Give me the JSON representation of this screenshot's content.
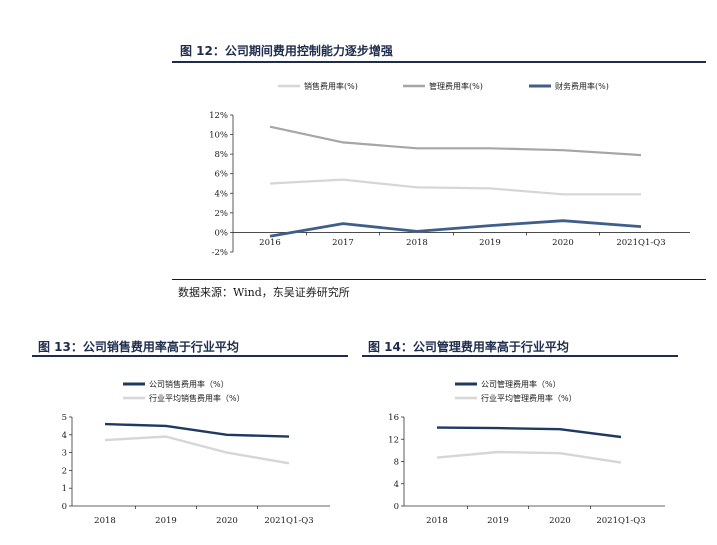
{
  "figures": [
    {
      "title": "图 12：公司期间费用控制能力逐步增强",
      "source": "数据来源：Wind，东吴证券研究所"
    },
    {
      "title": "图 13：公司销售费用率高于行业平均"
    },
    {
      "title": "图 14：公司管理费用率高于行业平均"
    }
  ],
  "chart_data": [
    {
      "type": "line",
      "categories": [
        "2016",
        "2017",
        "2018",
        "2019",
        "2020",
        "2021Q1-Q3"
      ],
      "y_ticks": [
        "12%",
        "10%",
        "8%",
        "6%",
        "4%",
        "2%",
        "0%",
        "-2%"
      ],
      "ylim": [
        -2,
        12
      ],
      "series": [
        {
          "name": "销售费用率(%)",
          "values": [
            5.0,
            5.4,
            4.6,
            4.5,
            3.9,
            3.9
          ],
          "color": "#d6d6d6"
        },
        {
          "name": "管理费用率(%)",
          "values": [
            10.8,
            9.2,
            8.6,
            8.6,
            8.4,
            7.9
          ],
          "color": "#a6a6a6"
        },
        {
          "name": "财务费用率(%)",
          "values": [
            -0.4,
            0.9,
            0.1,
            0.7,
            1.2,
            0.6
          ],
          "color": "#3f5f8a"
        }
      ],
      "legend": "top"
    },
    {
      "type": "line",
      "categories": [
        "2018",
        "2019",
        "2020",
        "2021Q1-Q3"
      ],
      "y_ticks": [
        "5",
        "4",
        "3",
        "2",
        "1",
        "0"
      ],
      "ylim": [
        0,
        5
      ],
      "series": [
        {
          "name": "公司销售费用率（%）",
          "values": [
            4.6,
            4.5,
            4.0,
            3.9
          ],
          "color": "#1f3864"
        },
        {
          "name": "行业平均销售费用率（%）",
          "values": [
            3.7,
            3.9,
            3.0,
            2.4
          ],
          "color": "#d6d6d6"
        }
      ],
      "legend": "top"
    },
    {
      "type": "line",
      "categories": [
        "2018",
        "2019",
        "2020",
        "2021Q1-Q3"
      ],
      "y_ticks": [
        "16",
        "12",
        "8",
        "4",
        "0"
      ],
      "ylim": [
        0,
        16
      ],
      "series": [
        {
          "name": "公司管理费用率（%）",
          "values": [
            14.1,
            14.0,
            13.8,
            12.4
          ],
          "color": "#1f3864"
        },
        {
          "name": "行业平均管理费用率（%）",
          "values": [
            8.7,
            9.7,
            9.5,
            7.8
          ],
          "color": "#d6d6d6"
        }
      ],
      "legend": "top"
    }
  ]
}
